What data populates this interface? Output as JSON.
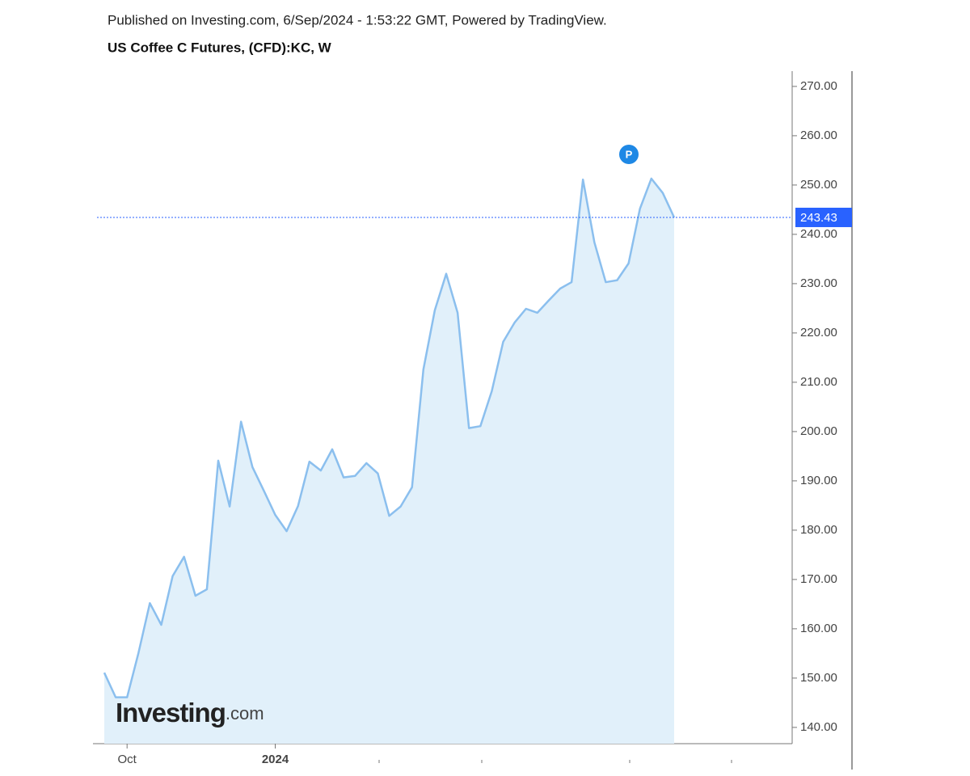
{
  "chart_data": {
    "type": "area",
    "subtitle": "Published on Investing.com, 6/Sep/2024 - 1:53:22 GMT, Powered by TradingView.",
    "title": "US Coffee C Futures, (CFD):KC, W",
    "categories": [
      null,
      null,
      "Oct",
      null,
      null,
      null,
      null,
      null,
      null,
      null,
      null,
      null,
      null,
      null,
      null,
      "2024",
      null,
      null,
      null,
      null,
      null,
      null,
      null,
      null,
      null,
      null,
      null,
      null,
      null,
      null,
      null,
      null,
      null,
      null,
      null,
      null,
      null,
      null,
      null,
      null,
      null,
      null,
      null,
      null,
      null,
      null,
      null,
      null,
      null,
      null,
      null
    ],
    "series": [
      {
        "name": "US Coffee C Futures",
        "color": "#8bbfee",
        "fill": "#e1f0fa",
        "values": [
          151.1,
          146.1,
          146.1,
          155.1,
          165.2,
          160.8,
          170.7,
          174.6,
          166.7,
          168.0,
          194.1,
          184.8,
          202.0,
          192.8,
          188.0,
          183.1,
          179.8,
          184.9,
          193.9,
          192.1,
          196.4,
          190.7,
          191.0,
          193.6,
          191.5,
          182.9,
          184.8,
          188.7,
          212.6,
          224.6,
          232.0,
          224.1,
          200.7,
          201.1,
          208.2,
          218.2,
          222.1,
          224.9,
          224.1,
          226.6,
          229.0,
          230.3,
          251.1,
          238.4,
          230.3,
          230.7,
          234.1,
          245.2,
          251.3,
          248.4,
          243.43
        ]
      }
    ],
    "ylim": [
      136.7,
      273.1
    ],
    "yticks": [
      {
        "value": 140,
        "label": "140.00"
      },
      {
        "value": 150,
        "label": "150.00"
      },
      {
        "value": 160,
        "label": "160.00"
      },
      {
        "value": 170,
        "label": "170.00"
      },
      {
        "value": 180,
        "label": "180.00"
      },
      {
        "value": 190,
        "label": "190.00"
      },
      {
        "value": 200,
        "label": "200.00"
      },
      {
        "value": 210,
        "label": "210.00"
      },
      {
        "value": 220,
        "label": "220.00"
      },
      {
        "value": 230,
        "label": "230.00"
      },
      {
        "value": 240,
        "label": "240.00"
      },
      {
        "value": 250,
        "label": "250.00"
      },
      {
        "value": 260,
        "label": "260.00"
      },
      {
        "value": 270,
        "label": "270.00"
      }
    ],
    "price_line_color": "#2962ff",
    "marker_label": "P",
    "watermark": {
      "brand": "Investing",
      "suffix": ".com"
    }
  }
}
